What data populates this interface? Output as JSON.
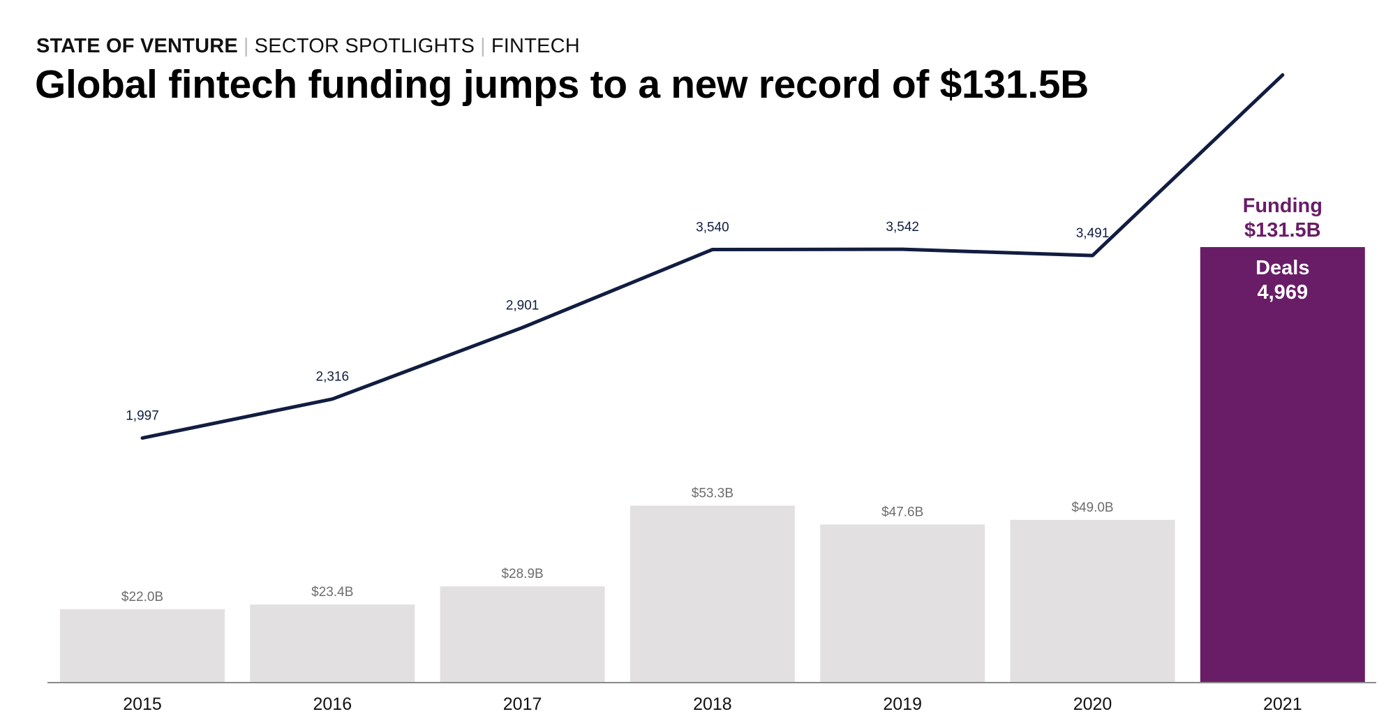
{
  "header": {
    "breadcrumb": [
      "STATE OF VENTURE",
      "SECTOR SPOTLIGHTS",
      "FINTECH"
    ],
    "title": "Global fintech funding jumps to a new record of $131.5B"
  },
  "colors": {
    "bar": "#e2e0e1",
    "highlight_bar": "#691d67",
    "line": "#111d40",
    "bar_label": "#6d6d6d",
    "axis": "#8a8a8a"
  },
  "chart_data": {
    "type": "bar",
    "categories": [
      "2015",
      "2016",
      "2017",
      "2018",
      "2019",
      "2020",
      "2021"
    ],
    "series": [
      {
        "name": "Funding",
        "type": "bar",
        "values": [
          22.0,
          23.4,
          28.9,
          53.3,
          47.6,
          49.0,
          131.5
        ],
        "labels": [
          "$22.0B",
          "$23.4B",
          "$28.9B",
          "$53.3B",
          "$47.6B",
          "$49.0B",
          "$131.5B"
        ]
      },
      {
        "name": "Deals",
        "type": "line",
        "values": [
          1997,
          2316,
          2901,
          3540,
          3542,
          3491,
          4969
        ],
        "labels": [
          "1,997",
          "2,316",
          "2,901",
          "3,540",
          "3,542",
          "3,491",
          "4,969"
        ]
      }
    ],
    "highlight_index": 6,
    "axes": {
      "funding_range": [
        0,
        131.5
      ],
      "deals_range": [
        0,
        6100
      ]
    },
    "grid": false,
    "legend": "none"
  }
}
